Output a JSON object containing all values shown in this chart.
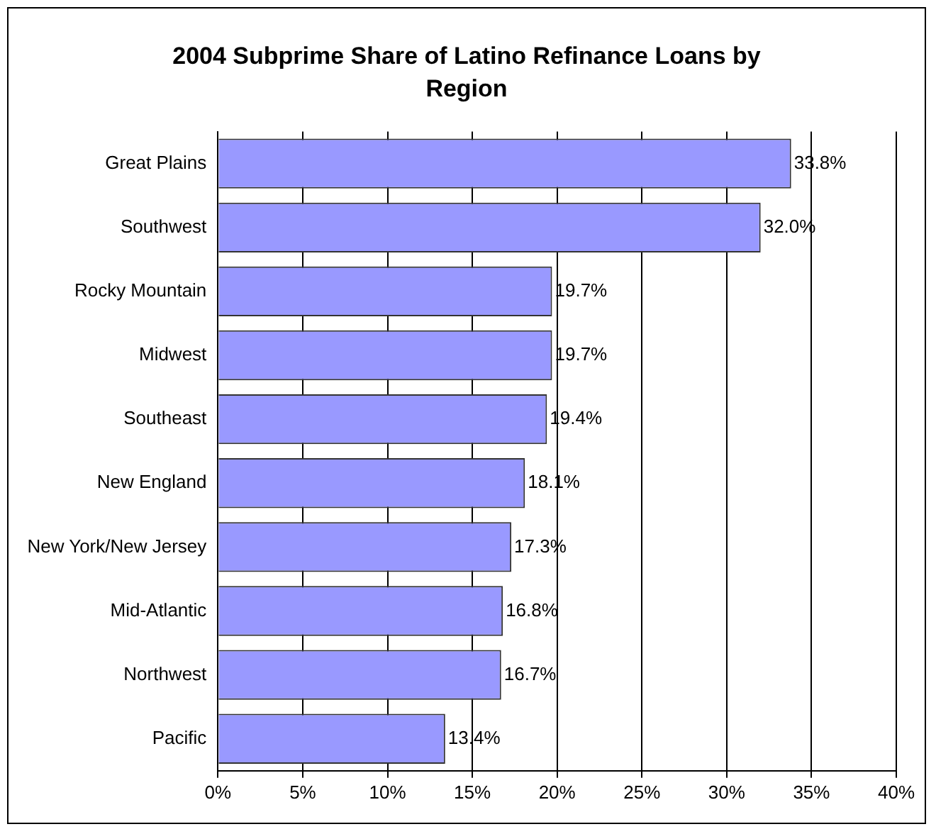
{
  "chart_data": {
    "type": "bar",
    "orientation": "horizontal",
    "title": "2004 Subprime Share of Latino Refinance Loans by Region",
    "categories": [
      "Great Plains",
      "Southwest",
      "Rocky Mountain",
      "Midwest",
      "Southeast",
      "New England",
      "New York/New Jersey",
      "Mid-Atlantic",
      "Northwest",
      "Pacific"
    ],
    "values": [
      33.8,
      32.0,
      19.7,
      19.7,
      19.4,
      18.1,
      17.3,
      16.8,
      16.7,
      13.4
    ],
    "value_labels": [
      "33.8%",
      "32.0%",
      "19.7%",
      "19.7%",
      "19.4%",
      "18.1%",
      "17.3%",
      "16.8%",
      "16.7%",
      "13.4%"
    ],
    "color": "#9999ff",
    "xlim": [
      0,
      40
    ],
    "xticks": [
      {
        "value": 0,
        "label": "0%"
      },
      {
        "value": 5,
        "label": "5%"
      },
      {
        "value": 10,
        "label": "10%"
      },
      {
        "value": 15,
        "label": "15%"
      },
      {
        "value": 20,
        "label": "20%"
      },
      {
        "value": 25,
        "label": "25%"
      },
      {
        "value": 30,
        "label": "30%"
      },
      {
        "value": 35,
        "label": "35%"
      },
      {
        "value": 40,
        "label": "40%"
      }
    ],
    "grid": "x",
    "legend": false
  }
}
